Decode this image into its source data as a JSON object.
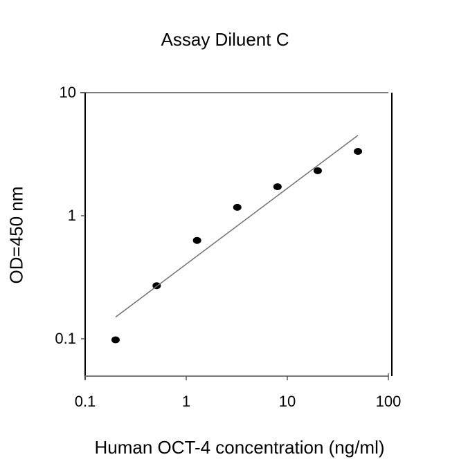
{
  "chart_data": {
    "type": "scatter",
    "title": "Assay Diluent C",
    "xlabel": "Human OCT-4 concentration (ng/ml)",
    "ylabel": "OD=450 nm",
    "xscale": "log",
    "yscale": "log",
    "xlim": [
      0.1,
      100
    ],
    "ylim": [
      0.05,
      10
    ],
    "xticks": [
      0.1,
      1,
      10,
      100
    ],
    "xtick_labels": [
      "0.1",
      "1",
      "10",
      "100"
    ],
    "yticks": [
      0.1,
      1,
      10
    ],
    "ytick_labels": [
      "0.1",
      "1",
      "10"
    ],
    "grid": false,
    "legend": null,
    "series": [
      {
        "name": "Standard points",
        "marker": "filled-circle",
        "color": "#000000",
        "x": [
          0.2,
          0.51,
          1.28,
          3.2,
          8,
          20,
          50
        ],
        "y": [
          0.098,
          0.27,
          0.63,
          1.17,
          1.72,
          2.32,
          3.33
        ]
      },
      {
        "name": "Fit line",
        "type": "line",
        "color": "#707070",
        "x": [
          0.2,
          50
        ],
        "y": [
          0.15,
          4.5
        ]
      }
    ]
  },
  "labels": {
    "title": "Assay Diluent C",
    "xlabel": "Human OCT-4 concentration (ng/ml)",
    "ylabel": "OD=450 nm",
    "xticks": [
      "0.1",
      "1",
      "10",
      "100"
    ],
    "yticks": [
      "10",
      "1",
      "0.1"
    ]
  }
}
